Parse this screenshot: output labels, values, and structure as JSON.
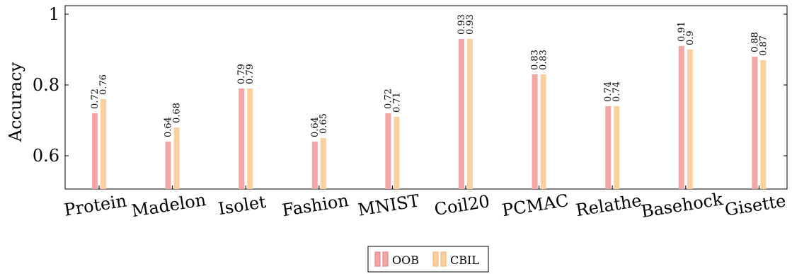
{
  "chart_data": {
    "type": "bar",
    "ylabel": "Accuracy",
    "xlabel": "",
    "title": "",
    "ylim": [
      0.5,
      1.0
    ],
    "yticks": [
      {
        "value": 0.6,
        "label": "0.6"
      },
      {
        "value": 0.8,
        "label": "0.8"
      },
      {
        "value": 1.0,
        "label": "1"
      }
    ],
    "grid": false,
    "legend_position": "bottom-center",
    "categories": [
      "Protein",
      "Madelon",
      "Isolet",
      "Fashion",
      "MNIST",
      "Coil20",
      "PCMAC",
      "Relathe",
      "Basehock",
      "Gisette"
    ],
    "series": [
      {
        "name": "OOB",
        "color": "#f4a6a6",
        "edge_color": "#e07a7a",
        "values": [
          0.72,
          0.64,
          0.79,
          0.64,
          0.72,
          0.93,
          0.83,
          0.74,
          0.91,
          0.88
        ],
        "labels": [
          "0.72",
          "0.64",
          "0.79",
          "0.64",
          "0.72",
          "0.93",
          "0.83",
          "0.74",
          "0.91",
          "0.88"
        ]
      },
      {
        "name": "CBIL",
        "color": "#fbd0a0",
        "edge_color": "#f0b070",
        "values": [
          0.76,
          0.68,
          0.79,
          0.65,
          0.71,
          0.93,
          0.83,
          0.74,
          0.9,
          0.87
        ],
        "labels": [
          "0.76",
          "0.68",
          "0.79",
          "0.65",
          "0.71",
          "0.93",
          "0.83",
          "0.74",
          "0.9",
          "0.87"
        ]
      }
    ]
  }
}
